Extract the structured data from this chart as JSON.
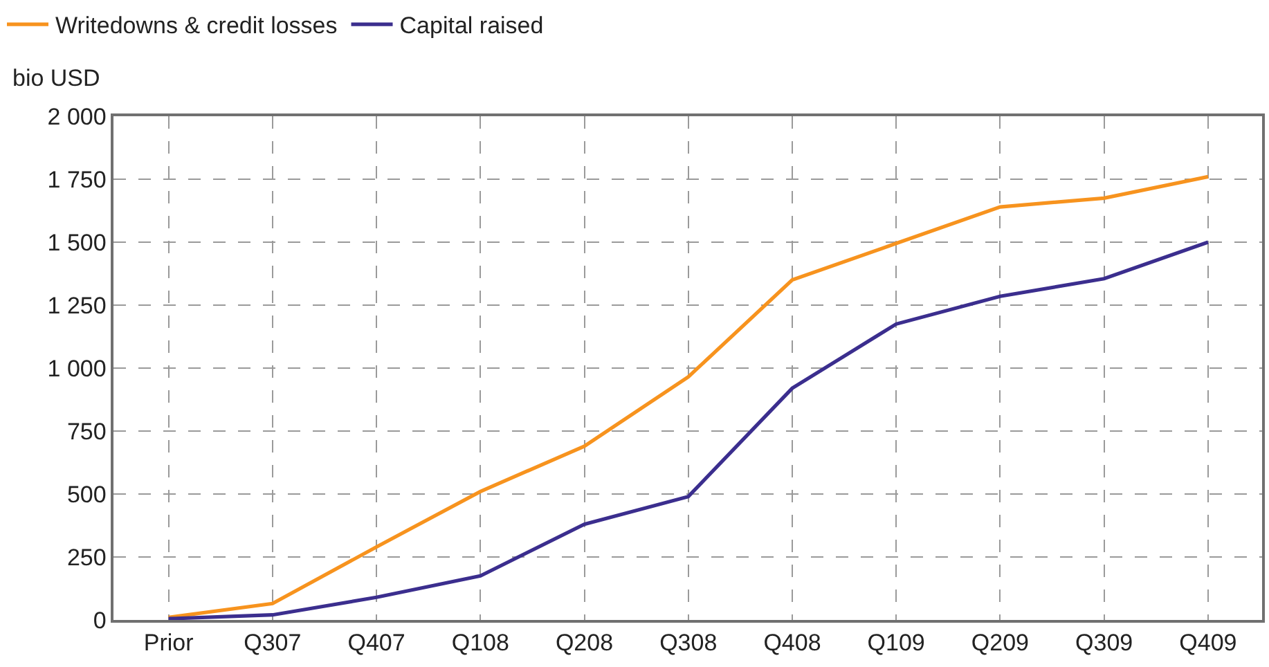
{
  "chart_data": {
    "type": "line",
    "ylabel": "bio USD",
    "categories": [
      "Prior",
      "Q307",
      "Q407",
      "Q108",
      "Q208",
      "Q308",
      "Q408",
      "Q109",
      "Q209",
      "Q309",
      "Q409"
    ],
    "series": [
      {
        "name": "Writedowns & credit losses",
        "color": "#f7931e",
        "values": [
          10,
          65,
          290,
          510,
          690,
          965,
          1350,
          1495,
          1640,
          1675,
          1760
        ]
      },
      {
        "name": "Capital raised",
        "color": "#3b2e8e",
        "values": [
          5,
          20,
          90,
          175,
          380,
          490,
          920,
          1175,
          1285,
          1355,
          1500
        ]
      }
    ],
    "ylim": [
      0,
      2000
    ],
    "yticks": [
      0,
      250,
      500,
      750,
      {
        "value": 1000,
        "label": "1 000"
      },
      {
        "value": 1250,
        "label": "1 250"
      },
      {
        "value": 1500,
        "label": "1 500"
      },
      {
        "value": 1750,
        "label": "1 750"
      },
      {
        "value": 2000,
        "label": "2 000"
      }
    ],
    "grid": true,
    "legend": "top left",
    "marker": "none",
    "line_style": "solid"
  }
}
